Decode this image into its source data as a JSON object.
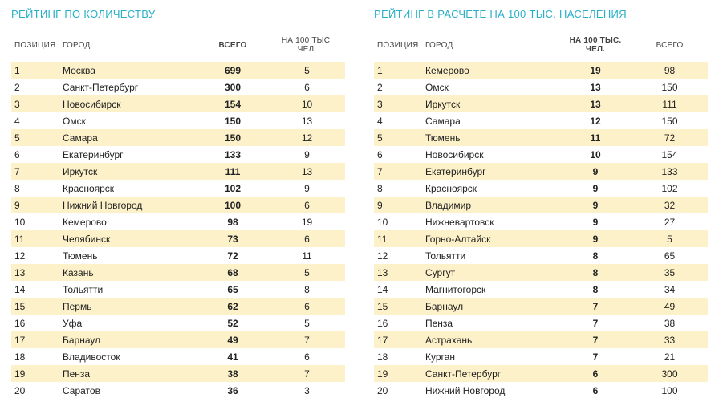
{
  "colors": {
    "title": "#29b0c8",
    "row_odd_bg": "#fdf1c9",
    "text": "#222222",
    "header_text": "#444444",
    "background": "#ffffff"
  },
  "typography": {
    "title_fontsize": 13,
    "header_fontsize": 10,
    "cell_fontsize": 12,
    "font_family": "Arial"
  },
  "left": {
    "title": "РЕЙТИНГ ПО КОЛИЧЕСТВУ",
    "columns": [
      "ПОЗИЦИЯ",
      "ГОРОД",
      "ВСЕГО",
      "НА 100 ТЫС. ЧЕЛ."
    ],
    "emphasis_col_index": 2,
    "rows": [
      {
        "pos": "1",
        "city": "Москва",
        "a": "699",
        "b": "5"
      },
      {
        "pos": "2",
        "city": "Санкт-Петербург",
        "a": "300",
        "b": "6"
      },
      {
        "pos": "3",
        "city": "Новосибирск",
        "a": "154",
        "b": "10"
      },
      {
        "pos": "4",
        "city": "Омск",
        "a": "150",
        "b": "13"
      },
      {
        "pos": "5",
        "city": "Самара",
        "a": "150",
        "b": "12"
      },
      {
        "pos": "6",
        "city": "Екатеринбург",
        "a": "133",
        "b": "9"
      },
      {
        "pos": "7",
        "city": "Иркутск",
        "a": "111",
        "b": "13"
      },
      {
        "pos": "8",
        "city": "Красноярск",
        "a": "102",
        "b": "9"
      },
      {
        "pos": "9",
        "city": "Нижний Новгород",
        "a": "100",
        "b": "6"
      },
      {
        "pos": "10",
        "city": "Кемерово",
        "a": "98",
        "b": "19"
      },
      {
        "pos": "11",
        "city": "Челябинск",
        "a": "73",
        "b": "6"
      },
      {
        "pos": "12",
        "city": "Тюмень",
        "a": "72",
        "b": "11"
      },
      {
        "pos": "13",
        "city": "Казань",
        "a": "68",
        "b": "5"
      },
      {
        "pos": "14",
        "city": "Тольятти",
        "a": "65",
        "b": "8"
      },
      {
        "pos": "15",
        "city": "Пермь",
        "a": "62",
        "b": "6"
      },
      {
        "pos": "16",
        "city": "Уфа",
        "a": "52",
        "b": "5"
      },
      {
        "pos": "17",
        "city": "Барнаул",
        "a": "49",
        "b": "7"
      },
      {
        "pos": "18",
        "city": "Владивосток",
        "a": "41",
        "b": "6"
      },
      {
        "pos": "19",
        "city": "Пенза",
        "a": "38",
        "b": "7"
      },
      {
        "pos": "20",
        "city": "Саратов",
        "a": "36",
        "b": "3"
      }
    ]
  },
  "right": {
    "title": "РЕЙТИНГ В РАСЧЕТЕ НА 100 ТЫС. НАСЕЛЕНИЯ",
    "columns": [
      "ПОЗИЦИЯ",
      "ГОРОД",
      "НА 100 ТЫС. ЧЕЛ.",
      "ВСЕГО"
    ],
    "emphasis_col_index": 2,
    "rows": [
      {
        "pos": "1",
        "city": "Кемерово",
        "a": "19",
        "b": "98"
      },
      {
        "pos": "2",
        "city": "Омск",
        "a": "13",
        "b": "150"
      },
      {
        "pos": "3",
        "city": "Иркутск",
        "a": "13",
        "b": "111"
      },
      {
        "pos": "4",
        "city": "Самара",
        "a": "12",
        "b": "150"
      },
      {
        "pos": "5",
        "city": "Тюмень",
        "a": "11",
        "b": "72"
      },
      {
        "pos": "6",
        "city": "Новосибирск",
        "a": "10",
        "b": "154"
      },
      {
        "pos": "7",
        "city": "Екатеринбург",
        "a": "9",
        "b": "133"
      },
      {
        "pos": "8",
        "city": "Красноярск",
        "a": "9",
        "b": "102"
      },
      {
        "pos": "9",
        "city": "Владимир",
        "a": "9",
        "b": "32"
      },
      {
        "pos": "10",
        "city": "Нижневартовск",
        "a": "9",
        "b": "27"
      },
      {
        "pos": "11",
        "city": "Горно-Алтайск",
        "a": "9",
        "b": "5"
      },
      {
        "pos": "12",
        "city": "Тольятти",
        "a": "8",
        "b": "65"
      },
      {
        "pos": "13",
        "city": "Сургут",
        "a": "8",
        "b": "35"
      },
      {
        "pos": "14",
        "city": "Магнитогорск",
        "a": "8",
        "b": "34"
      },
      {
        "pos": "15",
        "city": "Барнаул",
        "a": "7",
        "b": "49"
      },
      {
        "pos": "16",
        "city": "Пенза",
        "a": "7",
        "b": "38"
      },
      {
        "pos": "17",
        "city": "Астрахань",
        "a": "7",
        "b": "33"
      },
      {
        "pos": "18",
        "city": "Курган",
        "a": "7",
        "b": "21"
      },
      {
        "pos": "19",
        "city": "Санкт-Петербург",
        "a": "6",
        "b": "300"
      },
      {
        "pos": "20",
        "city": "Нижний Новгород",
        "a": "6",
        "b": "100"
      }
    ]
  }
}
